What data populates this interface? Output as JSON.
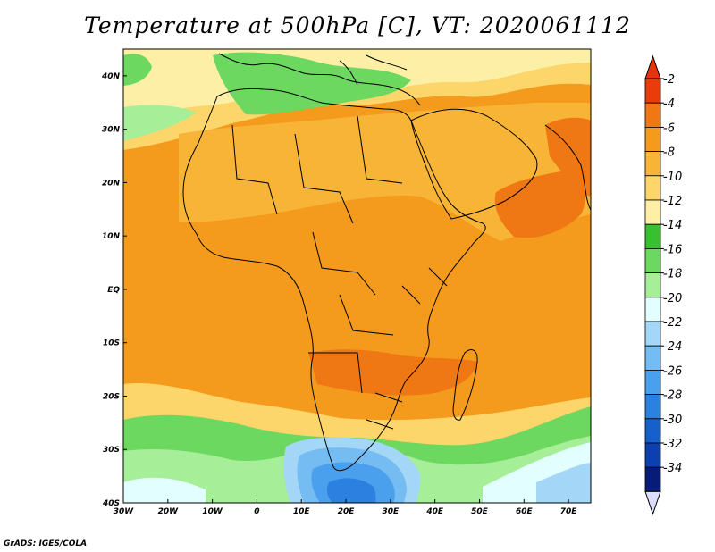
{
  "title": "Temperature at 500hPa [C], VT: 2020061112",
  "footer": "GrADS: IGES/COLA",
  "map": {
    "lon_range": [
      -30,
      75
    ],
    "lat_range": [
      -40,
      45
    ],
    "x_ticks": [
      "30W",
      "20W",
      "10W",
      "0",
      "10E",
      "20E",
      "30E",
      "40E",
      "50E",
      "60E",
      "70E"
    ],
    "y_ticks": [
      "40S",
      "30S",
      "20S",
      "10S",
      "EQ",
      "10N",
      "20N",
      "30N",
      "40N"
    ],
    "colorbar": {
      "levels": [
        "-2",
        "-4",
        "-6",
        "-8",
        "-10",
        "-12",
        "-14",
        "-16",
        "-18",
        "-20",
        "-22",
        "-24",
        "-26",
        "-28",
        "-30",
        "-32",
        "-34"
      ],
      "colors": [
        "#e83c0c",
        "#f07814",
        "#f49a1c",
        "#f8b436",
        "#fcd66a",
        "#fdf0a6",
        "#38c030",
        "#6cd860",
        "#a6ee98",
        "#e2fefe",
        "#a4d6f8",
        "#74bcf2",
        "#4aa0ec",
        "#2c80e0",
        "#1660cc",
        "#0c40b0",
        "#061c78"
      ],
      "over_color": "#e8320e",
      "under_color": "#dcdcfe"
    }
  }
}
